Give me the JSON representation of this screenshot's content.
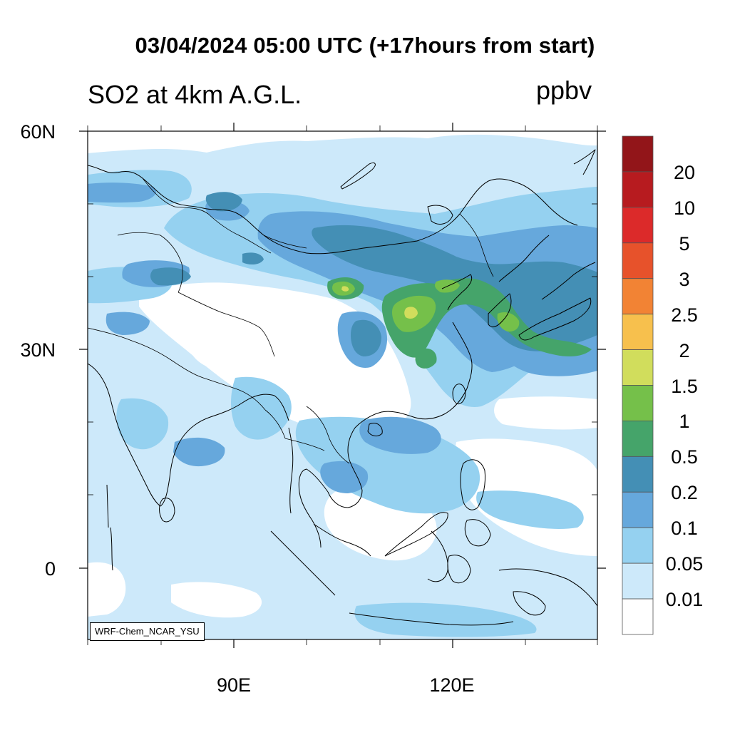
{
  "title": "03/04/2024 05:00 UTC (+17hours from start)",
  "subtitle": "SO2 at 4km A.G.L.",
  "units": "ppbv",
  "credit": "WRF-Chem_NCAR_YSU",
  "axes": {
    "lat_labels": [
      "60N",
      "30N",
      "0"
    ],
    "lon_labels": [
      "90E",
      "120E"
    ]
  },
  "colorbar": {
    "labels": [
      "20",
      "10",
      "5",
      "3",
      "2.5",
      "2",
      "1.5",
      "1",
      "0.5",
      "0.2",
      "0.1",
      "0.05",
      "0.01"
    ],
    "colors": [
      "#921519",
      "#b71b1f",
      "#dc2a2a",
      "#e7522b",
      "#f28334",
      "#f7c04d",
      "#d1dd5c",
      "#75c04a",
      "#45a46a",
      "#448fb5",
      "#66a8dc",
      "#95d1f0",
      "#cde9fa",
      "#ffffff"
    ]
  },
  "colors": {
    "frame": "#000000",
    "coast": "#000000"
  }
}
